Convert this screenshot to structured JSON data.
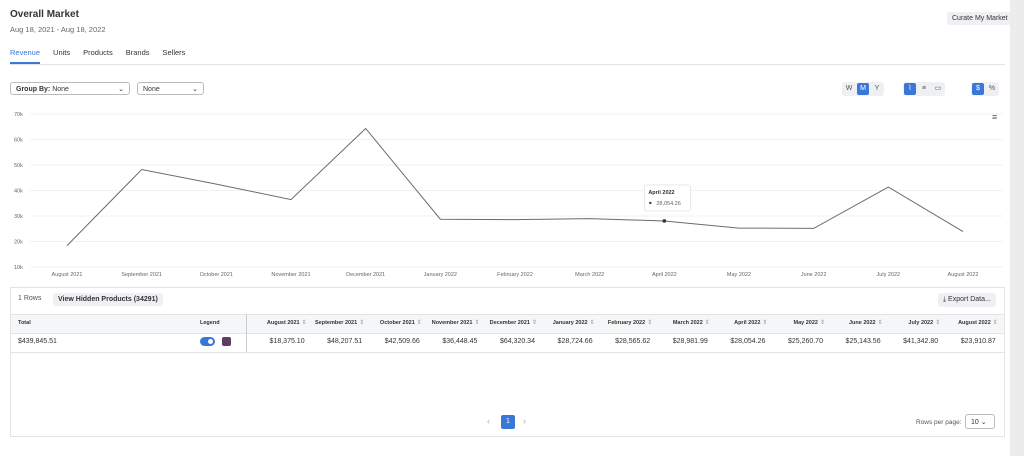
{
  "header": {
    "title": "Overall Market",
    "date_range": "Aug 18, 2021 - Aug 18, 2022",
    "curate_button": "Curate My Market"
  },
  "tabs": [
    "Revenue",
    "Units",
    "Products",
    "Brands",
    "Sellers"
  ],
  "controls": {
    "group_by_label": "Group By:",
    "group_by_value": "None",
    "second_select": "None",
    "periods": [
      "W",
      "M",
      "Y"
    ],
    "units": [
      "$",
      "%"
    ]
  },
  "chart_data": {
    "type": "line",
    "categories": [
      "August 2021",
      "September 2021",
      "October 2021",
      "November 2021",
      "December 2021",
      "January 2022",
      "February 2022",
      "March 2022",
      "April 2022",
      "May 2022",
      "June 2022",
      "July 2022",
      "August 2022"
    ],
    "values": [
      18375.1,
      48207.51,
      42509.66,
      36448.45,
      64320.34,
      28724.66,
      28565.62,
      28981.99,
      28054.26,
      25260.7,
      25143.56,
      41342.8,
      23910.87
    ],
    "value_labels": [
      "$18,375.10",
      "$48,207.51",
      "$42,509.66",
      "$36,448.45",
      "$64,320.34",
      "$28,724.66",
      "$28,565.62",
      "$28,981.99",
      "$28,054.26",
      "$25,260.70",
      "$25,143.56",
      "$41,342.80",
      "$23,910.87"
    ],
    "color": "#6b6b6b",
    "ylim": [
      10000,
      70000
    ],
    "yticks": [
      {
        "value": 10000,
        "label": "10k"
      },
      {
        "value": 20000,
        "label": "20k"
      },
      {
        "value": 30000,
        "label": "30k"
      },
      {
        "value": 40000,
        "label": "40k"
      },
      {
        "value": 50000,
        "label": "50k"
      },
      {
        "value": 60000,
        "label": "60k"
      },
      {
        "value": 70000,
        "label": "70k"
      }
    ],
    "grid": true
  },
  "tooltip": {
    "title": "April 2022",
    "label": "28,054.26"
  },
  "table": {
    "row_count": "1 Rows",
    "hidden_button": "View Hidden Products (34291)",
    "export_button": "Export Data...",
    "headers": [
      "Total",
      "Legend"
    ],
    "total": "$439,845.51"
  },
  "pagination": {
    "page": "1",
    "rows_per_page_label": "Rows per page:",
    "rows_per_page": "10"
  }
}
